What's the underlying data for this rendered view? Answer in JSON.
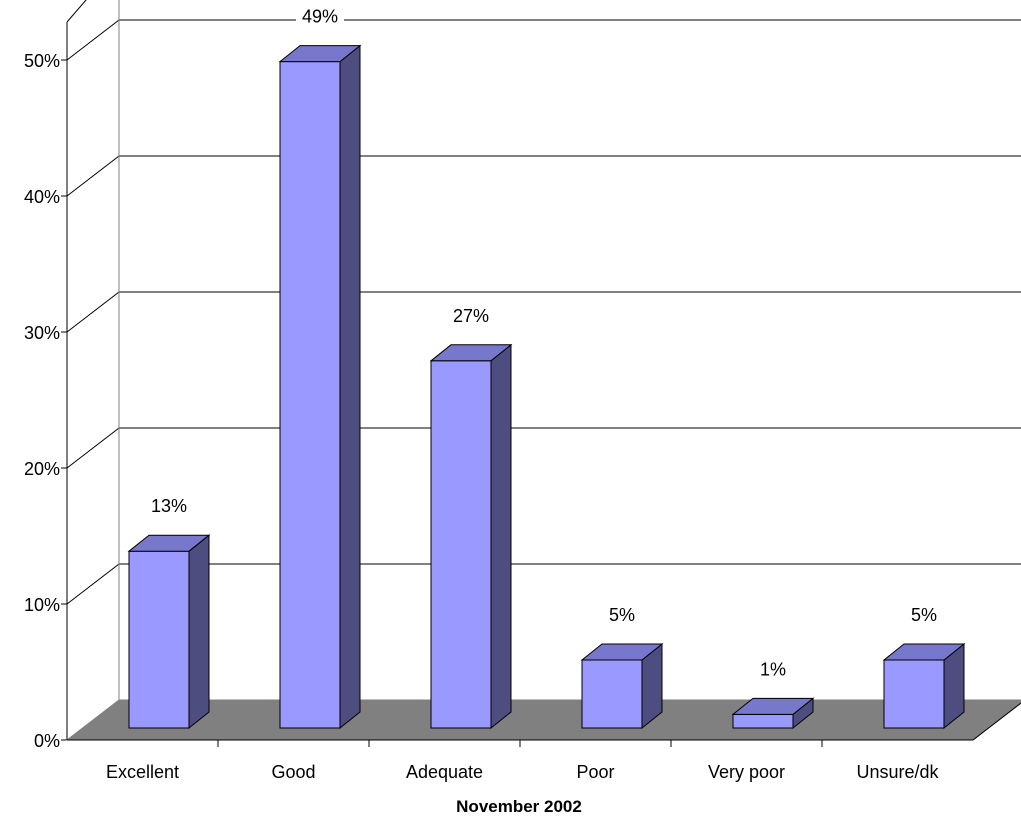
{
  "chart_data": {
    "type": "bar",
    "title": "",
    "xlabel": "November 2002",
    "ylabel": "",
    "categories": [
      "Excellent",
      "Good",
      "Adequate",
      "Poor",
      "Very poor",
      "Unsure/dk"
    ],
    "values": [
      13,
      49,
      27,
      5,
      1,
      5
    ],
    "data_labels": [
      "13%",
      "49%",
      "27%",
      "5%",
      "1%",
      "5%"
    ],
    "ylim": [
      0,
      50
    ],
    "yticks": [
      0,
      10,
      20,
      30,
      40,
      50
    ],
    "ytick_labels": [
      "0%",
      "10%",
      "20%",
      "30%",
      "40%",
      "50%"
    ],
    "grid": true,
    "legend": "none",
    "style": "3d-column",
    "colors": {
      "bar_front": "#9999ff",
      "bar_side": "#4d4d80",
      "bar_top": "#7777cc",
      "floor": "#808080",
      "grid": "#000000"
    }
  }
}
